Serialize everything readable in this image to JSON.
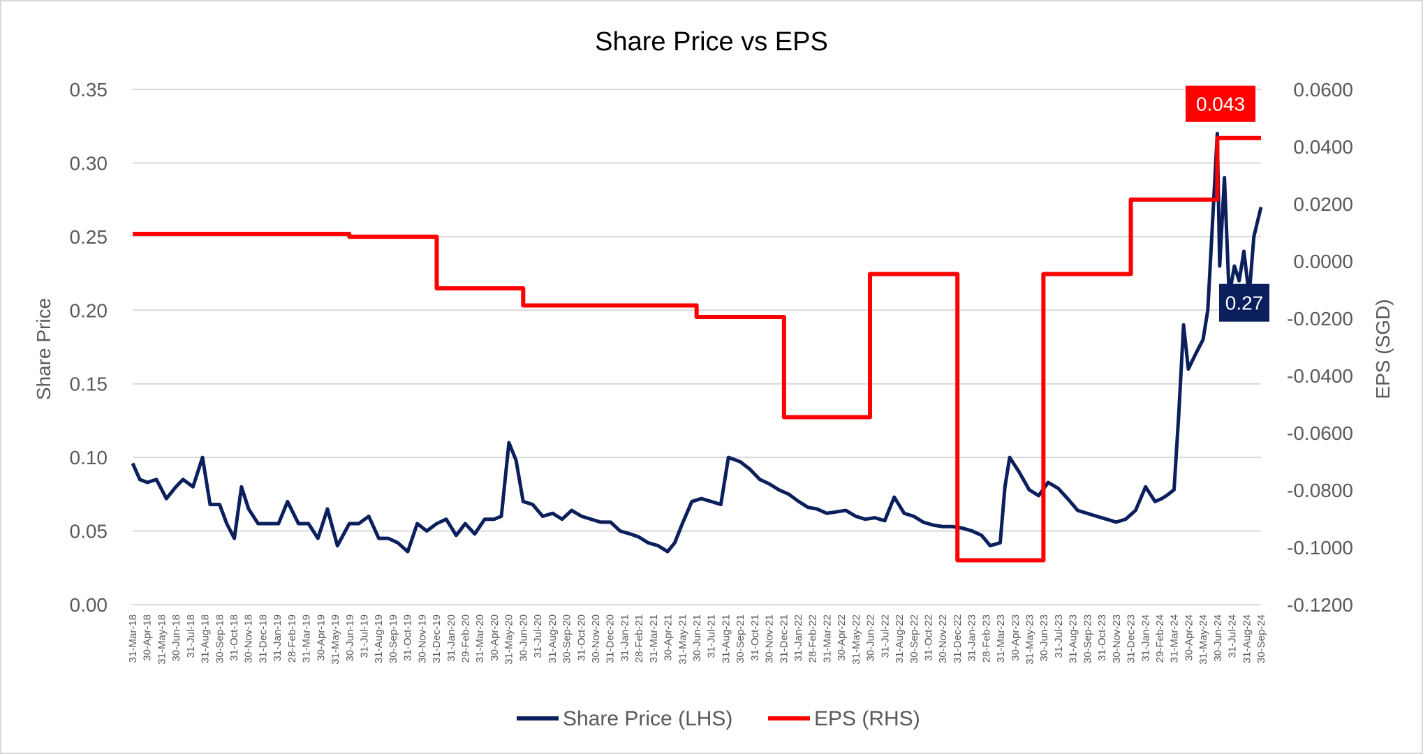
{
  "chart_data": {
    "type": "line",
    "title": "Share Price vs EPS",
    "y_left": {
      "label": "Share Price",
      "range": [
        0,
        0.35
      ],
      "ticks": [
        "0.00",
        "0.05",
        "0.10",
        "0.15",
        "0.20",
        "0.25",
        "0.30",
        "0.35"
      ]
    },
    "y_right": {
      "label": "EPS (SGD)",
      "range": [
        -0.12,
        0.06
      ],
      "ticks": [
        "-0.1200",
        "-0.1000",
        "-0.0800",
        "-0.0600",
        "-0.0400",
        "-0.0200",
        "0.0000",
        "0.0200",
        "0.0400",
        "0.0600"
      ]
    },
    "x_range": [
      "2018-03-31",
      "2024-09-30"
    ],
    "x_tick_labels": [
      "31-Mar-18",
      "30-Apr-18",
      "31-May-18",
      "30-Jun-18",
      "31-Jul-18",
      "31-Aug-18",
      "30-Sep-18",
      "31-Oct-18",
      "30-Nov-18",
      "31-Dec-18",
      "31-Jan-19",
      "28-Feb-19",
      "31-Mar-19",
      "30-Apr-19",
      "31-May-19",
      "30-Jun-19",
      "31-Jul-19",
      "31-Aug-19",
      "30-Sep-19",
      "31-Oct-19",
      "30-Nov-19",
      "31-Dec-19",
      "31-Jan-20",
      "29-Feb-20",
      "31-Mar-20",
      "30-Apr-20",
      "31-May-20",
      "30-Jun-20",
      "31-Jul-20",
      "31-Aug-20",
      "30-Sep-20",
      "31-Oct-20",
      "30-Nov-20",
      "31-Dec-20",
      "31-Jan-21",
      "28-Feb-21",
      "31-Mar-21",
      "30-Apr-21",
      "31-May-21",
      "30-Jun-21",
      "31-Jul-21",
      "31-Aug-21",
      "30-Sep-21",
      "31-Oct-21",
      "30-Nov-21",
      "31-Dec-21",
      "31-Jan-22",
      "28-Feb-22",
      "31-Mar-22",
      "30-Apr-22",
      "31-May-22",
      "30-Jun-22",
      "31-Jul-22",
      "31-Aug-22",
      "30-Sep-22",
      "31-Oct-22",
      "30-Nov-22",
      "31-Dec-22",
      "31-Jan-23",
      "28-Feb-23",
      "31-Mar-23",
      "30-Apr-23",
      "31-May-23",
      "30-Jun-23",
      "31-Jul-23",
      "31-Aug-23",
      "30-Sep-23",
      "31-Oct-23",
      "30-Nov-23",
      "31-Dec-23",
      "31-Jan-24",
      "29-Feb-24",
      "31-Mar-24",
      "30-Apr-24",
      "31-May-24",
      "30-Jun-24",
      "31-Jul-24",
      "31-Aug-24",
      "30-Sep-24"
    ],
    "grid": true,
    "legend_position": "bottom",
    "series": [
      {
        "name": "Share Price (LHS)",
        "axis": "left",
        "color": "#0b1f5c",
        "x": [
          "2018-03-31",
          "2018-04-15",
          "2018-05-01",
          "2018-05-20",
          "2018-06-10",
          "2018-06-30",
          "2018-07-15",
          "2018-08-05",
          "2018-08-25",
          "2018-09-10",
          "2018-09-30",
          "2018-10-15",
          "2018-10-31",
          "2018-11-15",
          "2018-11-30",
          "2018-12-20",
          "2019-01-10",
          "2019-02-01",
          "2019-02-20",
          "2019-03-15",
          "2019-04-05",
          "2019-04-25",
          "2019-05-15",
          "2019-06-05",
          "2019-06-30",
          "2019-07-20",
          "2019-08-10",
          "2019-08-31",
          "2019-09-20",
          "2019-10-10",
          "2019-10-31",
          "2019-11-20",
          "2019-12-10",
          "2019-12-31",
          "2020-01-20",
          "2020-02-10",
          "2020-02-29",
          "2020-03-20",
          "2020-04-10",
          "2020-04-30",
          "2020-05-15",
          "2020-05-31",
          "2020-06-15",
          "2020-06-30",
          "2020-07-20",
          "2020-08-10",
          "2020-08-31",
          "2020-09-20",
          "2020-10-10",
          "2020-10-31",
          "2020-11-20",
          "2020-12-10",
          "2020-12-31",
          "2021-01-20",
          "2021-02-10",
          "2021-02-28",
          "2021-03-20",
          "2021-04-10",
          "2021-04-30",
          "2021-05-15",
          "2021-05-31",
          "2021-06-20",
          "2021-07-10",
          "2021-07-31",
          "2021-08-20",
          "2021-09-05",
          "2021-09-30",
          "2021-10-20",
          "2021-11-10",
          "2021-11-30",
          "2021-12-20",
          "2022-01-10",
          "2022-01-31",
          "2022-02-20",
          "2022-03-10",
          "2022-03-31",
          "2022-04-20",
          "2022-05-10",
          "2022-05-31",
          "2022-06-20",
          "2022-07-10",
          "2022-07-31",
          "2022-08-20",
          "2022-09-10",
          "2022-09-30",
          "2022-10-20",
          "2022-11-10",
          "2022-11-30",
          "2022-12-20",
          "2023-01-10",
          "2023-01-31",
          "2023-02-20",
          "2023-03-10",
          "2023-03-31",
          "2023-04-10",
          "2023-04-20",
          "2023-05-10",
          "2023-05-31",
          "2023-06-20",
          "2023-07-10",
          "2023-07-31",
          "2023-08-20",
          "2023-09-10",
          "2023-09-30",
          "2023-10-20",
          "2023-11-10",
          "2023-11-30",
          "2023-12-20",
          "2024-01-10",
          "2024-01-31",
          "2024-02-20",
          "2024-03-05",
          "2024-03-15",
          "2024-03-31",
          "2024-04-10",
          "2024-04-20",
          "2024-04-30",
          "2024-05-15",
          "2024-05-31",
          "2024-06-10",
          "2024-06-20",
          "2024-06-30",
          "2024-07-05",
          "2024-07-15",
          "2024-07-25",
          "2024-08-05",
          "2024-08-15",
          "2024-08-25",
          "2024-09-05",
          "2024-09-15",
          "2024-09-30"
        ],
        "values": [
          0.096,
          0.085,
          0.083,
          0.085,
          0.072,
          0.08,
          0.085,
          0.08,
          0.1,
          0.068,
          0.068,
          0.055,
          0.045,
          0.08,
          0.065,
          0.055,
          0.055,
          0.055,
          0.07,
          0.055,
          0.055,
          0.045,
          0.065,
          0.04,
          0.055,
          0.055,
          0.06,
          0.045,
          0.045,
          0.042,
          0.036,
          0.055,
          0.05,
          0.055,
          0.058,
          0.047,
          0.055,
          0.048,
          0.058,
          0.058,
          0.06,
          0.11,
          0.098,
          0.07,
          0.068,
          0.06,
          0.062,
          0.058,
          0.064,
          0.06,
          0.058,
          0.056,
          0.056,
          0.05,
          0.048,
          0.046,
          0.042,
          0.04,
          0.036,
          0.042,
          0.055,
          0.07,
          0.072,
          0.07,
          0.068,
          0.1,
          0.097,
          0.092,
          0.085,
          0.082,
          0.078,
          0.075,
          0.07,
          0.066,
          0.065,
          0.062,
          0.063,
          0.064,
          0.06,
          0.058,
          0.059,
          0.057,
          0.073,
          0.062,
          0.06,
          0.056,
          0.054,
          0.053,
          0.053,
          0.052,
          0.05,
          0.047,
          0.04,
          0.042,
          0.08,
          0.1,
          0.09,
          0.078,
          0.074,
          0.083,
          0.079,
          0.072,
          0.064,
          0.062,
          0.06,
          0.058,
          0.056,
          0.058,
          0.064,
          0.08,
          0.07,
          0.072,
          0.074,
          0.078,
          0.13,
          0.19,
          0.16,
          0.17,
          0.18,
          0.2,
          0.26,
          0.32,
          0.23,
          0.29,
          0.21,
          0.23,
          0.22,
          0.24,
          0.21,
          0.25,
          0.27
        ]
      },
      {
        "name": "EPS (RHS)",
        "axis": "right",
        "color": "#ff0000",
        "step": true,
        "x": [
          "2018-03-31",
          "2019-06-30",
          "2019-12-31",
          "2020-06-30",
          "2021-06-30",
          "2021-12-31",
          "2022-06-30",
          "2022-12-31",
          "2023-06-30",
          "2023-12-31",
          "2024-06-30",
          "2024-09-30"
        ],
        "values": [
          0.0095,
          0.0085,
          -0.0095,
          -0.0155,
          -0.0195,
          -0.0545,
          -0.0045,
          -0.1045,
          -0.0045,
          0.0215,
          0.043,
          0.043
        ]
      }
    ],
    "annotations": [
      {
        "text": "0.043",
        "series": "EPS (RHS)",
        "color": "#ff0000"
      },
      {
        "text": "0.27",
        "series": "Share Price (LHS)",
        "color": "#0b1f5c"
      }
    ]
  }
}
